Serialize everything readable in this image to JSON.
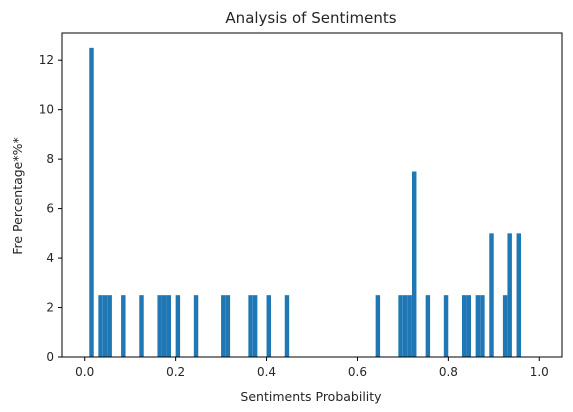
{
  "chart_data": {
    "type": "bar",
    "title": "Analysis of Sentiments",
    "xlabel": "Sentiments Probability",
    "ylabel": "Fre Percentage*%*",
    "xlim": [
      -0.05,
      1.05
    ],
    "ylim": [
      0,
      13.1
    ],
    "xticks": [
      0.0,
      0.2,
      0.4,
      0.6,
      0.8,
      1.0
    ],
    "xtick_labels": [
      "0.0",
      "0.2",
      "0.4",
      "0.6",
      "0.8",
      "1.0"
    ],
    "yticks": [
      0,
      2,
      4,
      6,
      8,
      10,
      12
    ],
    "ytick_labels": [
      "0",
      "2",
      "4",
      "6",
      "8",
      "10",
      "12"
    ],
    "bin_width": 0.0098,
    "bar_color": "#1f77b4",
    "grid": false,
    "x": [
      0.01,
      0.03,
      0.04,
      0.05,
      0.08,
      0.12,
      0.16,
      0.17,
      0.18,
      0.2,
      0.24,
      0.3,
      0.31,
      0.36,
      0.37,
      0.4,
      0.44,
      0.64,
      0.69,
      0.7,
      0.71,
      0.72,
      0.75,
      0.79,
      0.83,
      0.84,
      0.86,
      0.87,
      0.89,
      0.92,
      0.93,
      0.95
    ],
    "values": [
      12.5,
      2.5,
      2.5,
      2.5,
      2.5,
      2.5,
      2.5,
      2.5,
      2.5,
      2.5,
      2.5,
      2.5,
      2.5,
      2.5,
      2.5,
      2.5,
      2.5,
      2.5,
      2.5,
      2.5,
      2.5,
      7.5,
      2.5,
      2.5,
      2.5,
      2.5,
      2.5,
      2.5,
      5.0,
      2.5,
      5.0,
      5.0
    ]
  }
}
